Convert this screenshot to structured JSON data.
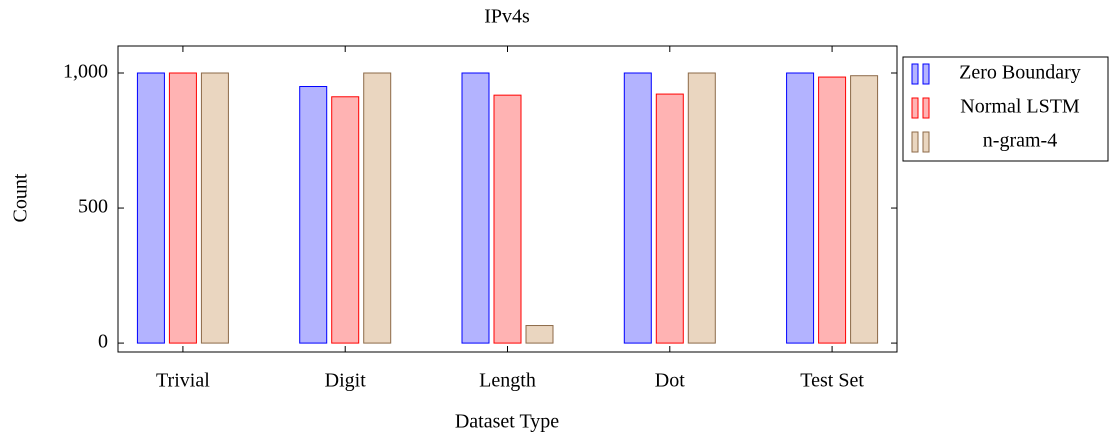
{
  "chart_data": {
    "type": "bar",
    "title": "IPv4s",
    "x_label": "Dataset Type",
    "y_label": "Count",
    "categories": [
      "Trivial",
      "Digit",
      "Length",
      "Dot",
      "Test Set"
    ],
    "series": [
      {
        "name": "Zero Boundary",
        "color": "#b3b3ff",
        "edge": "#0000ff",
        "values": [
          1000,
          950,
          1000,
          1000,
          1000
        ]
      },
      {
        "name": "Normal LSTM",
        "color": "#ffb3b3",
        "edge": "#ff0000",
        "values": [
          1000,
          912,
          918,
          922,
          985
        ]
      },
      {
        "name": "n-gram-4",
        "color": "#ead6c0",
        "edge": "#8c6a48",
        "values": [
          1000,
          1000,
          65,
          1000,
          990
        ]
      }
    ],
    "ylim": [
      -33,
      1100
    ],
    "yticks": [
      0,
      500,
      {
        "value": 1000,
        "label": "1,000"
      }
    ],
    "legend": "outside-right"
  }
}
